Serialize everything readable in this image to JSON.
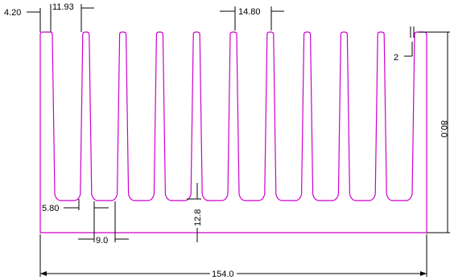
{
  "colors": {
    "profile": "#cc00cc",
    "dimension": "#000000",
    "background": "#ffffff"
  },
  "profile": {
    "fin_count": 11
  },
  "dimensions": {
    "top_edge_offset": "4.20",
    "fin_width_top": "11.93",
    "fin_pitch": "14.80",
    "fin_tip_radius": "2",
    "total_height": "80.0",
    "root_chamfer": "5.80",
    "fin_gap_bottom": "9.0",
    "base_thickness": "12.8",
    "total_width": "154.0"
  }
}
